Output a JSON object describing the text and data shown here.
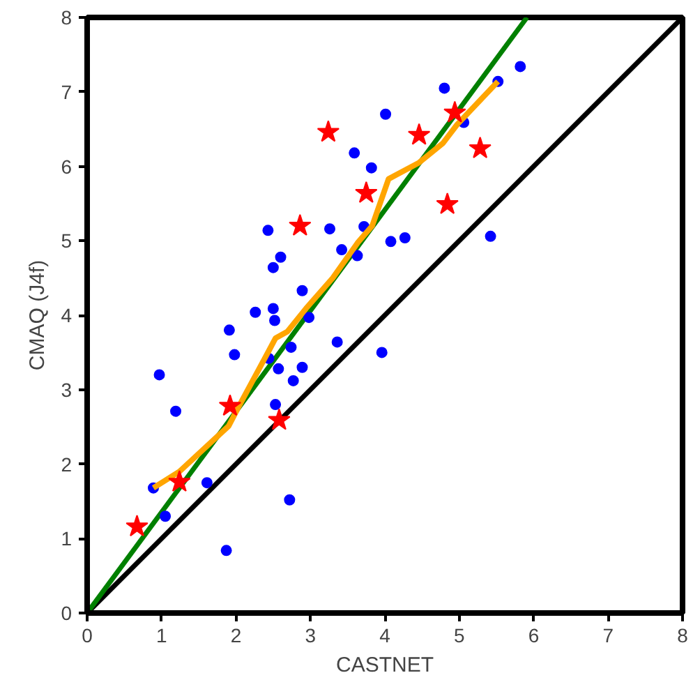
{
  "chart_data": {
    "type": "scatter",
    "xlabel": "CASTNET",
    "ylabel": "CMAQ (J4f)",
    "xlim": [
      0,
      8
    ],
    "ylim": [
      0,
      8
    ],
    "xticks": [
      0,
      1,
      2,
      3,
      4,
      5,
      6,
      7,
      8
    ],
    "yticks": [
      0,
      1,
      2,
      3,
      4,
      5,
      6,
      7,
      8
    ],
    "grid": false,
    "series": [
      {
        "type": "line",
        "color": "#000000",
        "x": [
          0,
          8
        ],
        "values": [
          0,
          8
        ]
      },
      {
        "type": "line",
        "color": "#008000",
        "x": [
          0,
          5.91
        ],
        "values": [
          0,
          8
        ]
      },
      {
        "marker": "circle",
        "color": "#0000ff",
        "x": [
          1.05,
          1.61,
          1.87,
          0.97,
          1.19,
          1.91,
          1.98,
          2.26,
          2.5,
          2.52,
          2.44,
          2.57,
          2.74,
          2.89,
          2.77,
          2.53,
          2.72,
          2.98,
          3.36,
          3.96,
          4.01,
          3.59,
          3.82,
          2.43,
          3.26,
          3.72,
          2.6,
          2.5,
          3.42,
          3.63,
          2.89,
          5.82,
          5.52,
          4.8,
          5.06,
          4.08,
          4.27,
          5.42,
          0.89
        ],
        "values": [
          1.3,
          1.75,
          0.84,
          3.2,
          2.71,
          3.8,
          3.47,
          4.04,
          4.09,
          3.93,
          3.42,
          3.28,
          3.57,
          3.3,
          3.12,
          2.8,
          1.52,
          3.97,
          3.64,
          3.5,
          6.7,
          6.18,
          5.98,
          5.14,
          5.16,
          5.19,
          4.78,
          4.64,
          4.88,
          4.8,
          4.33,
          7.34,
          7.14,
          7.05,
          6.59,
          4.99,
          5.04,
          5.06,
          1.68
        ]
      },
      {
        "type": "line",
        "color": "#ffa500",
        "x": [
          0.89,
          1.24,
          1.9,
          2.03,
          2.44,
          2.53,
          2.69,
          2.94,
          3.3,
          3.64,
          3.83,
          4.05,
          4.46,
          4.78,
          4.97,
          5.52
        ],
        "values": [
          1.68,
          1.9,
          2.51,
          2.76,
          3.52,
          3.69,
          3.78,
          4.09,
          4.5,
          4.98,
          5.2,
          5.83,
          6.05,
          6.31,
          6.56,
          7.14
        ]
      },
      {
        "marker": "star",
        "color": "#ff0000",
        "x": [
          0.67,
          1.24,
          1.92,
          2.58,
          2.86,
          3.24,
          3.75,
          4.46,
          4.84,
          4.94,
          5.28
        ],
        "values": [
          1.16,
          1.76,
          2.78,
          2.59,
          5.2,
          6.46,
          5.64,
          6.42,
          5.49,
          6.72,
          6.24
        ]
      }
    ]
  }
}
